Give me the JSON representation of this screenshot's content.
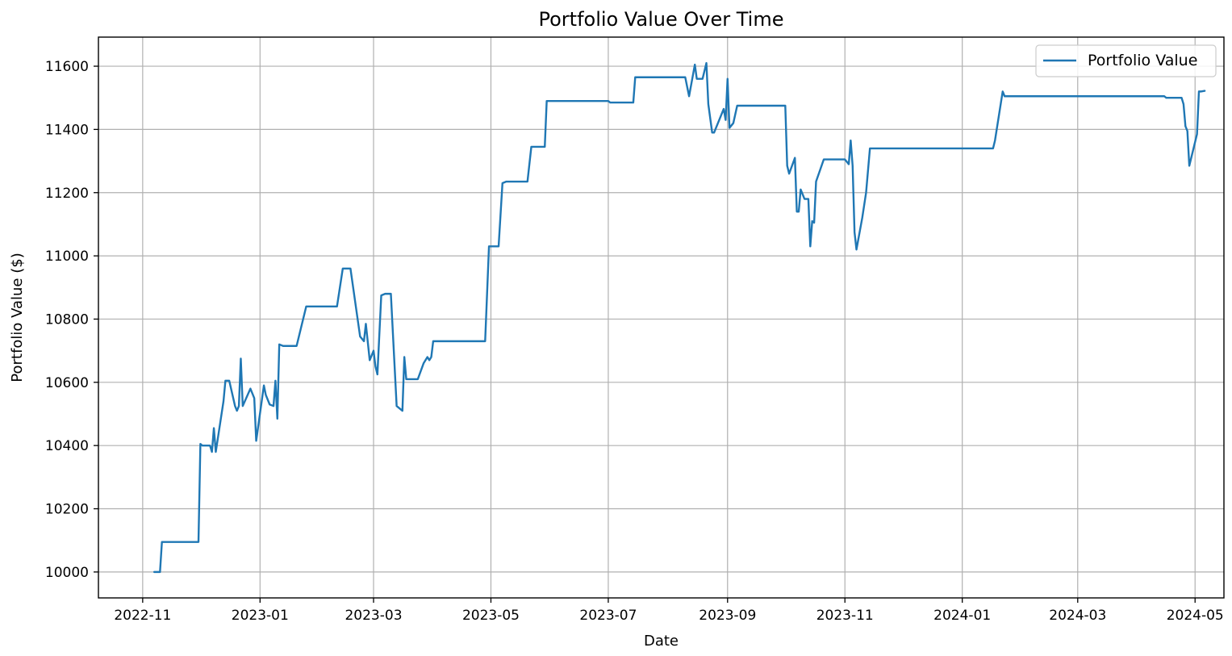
{
  "chart_data": {
    "type": "line",
    "title": "Portfolio Value Over Time",
    "xlabel": "Date",
    "ylabel": "Portfolio Value ($)",
    "x_ticks": [
      "2022-11",
      "2023-01",
      "2023-03",
      "2023-05",
      "2023-07",
      "2023-09",
      "2023-11",
      "2024-01",
      "2024-03",
      "2024-05"
    ],
    "y_ticks": [
      10000,
      10200,
      10400,
      10600,
      10800,
      11000,
      11200,
      11400,
      11600
    ],
    "xlim": [
      "2022-10-09",
      "2024-05-16"
    ],
    "ylim": [
      9918,
      11692
    ],
    "grid": true,
    "legend_position": "top-right",
    "series": [
      {
        "name": "Portfolio Value",
        "color": "#1f77b4",
        "points": [
          [
            "2022-11-07",
            10000
          ],
          [
            "2022-11-10",
            10000
          ],
          [
            "2022-11-11",
            10095
          ],
          [
            "2022-11-30",
            10095
          ],
          [
            "2022-12-01",
            10405
          ],
          [
            "2022-12-02",
            10400
          ],
          [
            "2022-12-06",
            10400
          ],
          [
            "2022-12-07",
            10380
          ],
          [
            "2022-12-08",
            10455
          ],
          [
            "2022-12-09",
            10380
          ],
          [
            "2022-12-13",
            10540
          ],
          [
            "2022-12-14",
            10605
          ],
          [
            "2022-12-16",
            10605
          ],
          [
            "2022-12-19",
            10525
          ],
          [
            "2022-12-20",
            10510
          ],
          [
            "2022-12-21",
            10525
          ],
          [
            "2022-12-22",
            10675
          ],
          [
            "2022-12-23",
            10525
          ],
          [
            "2022-12-27",
            10580
          ],
          [
            "2022-12-29",
            10550
          ],
          [
            "2022-12-30",
            10415
          ],
          [
            "2023-01-03",
            10590
          ],
          [
            "2023-01-04",
            10560
          ],
          [
            "2023-01-06",
            10530
          ],
          [
            "2023-01-08",
            10525
          ],
          [
            "2023-01-09",
            10605
          ],
          [
            "2023-01-10",
            10485
          ],
          [
            "2023-01-11",
            10720
          ],
          [
            "2023-01-13",
            10715
          ],
          [
            "2023-01-20",
            10715
          ],
          [
            "2023-01-25",
            10840
          ],
          [
            "2023-02-10",
            10840
          ],
          [
            "2023-02-13",
            10960
          ],
          [
            "2023-02-17",
            10960
          ],
          [
            "2023-02-22",
            10745
          ],
          [
            "2023-02-24",
            10730
          ],
          [
            "2023-02-25",
            10785
          ],
          [
            "2023-02-27",
            10670
          ],
          [
            "2023-03-01",
            10700
          ],
          [
            "2023-03-02",
            10650
          ],
          [
            "2023-03-03",
            10625
          ],
          [
            "2023-03-05",
            10875
          ],
          [
            "2023-03-07",
            10880
          ],
          [
            "2023-03-10",
            10880
          ],
          [
            "2023-03-13",
            10525
          ],
          [
            "2023-03-16",
            10510
          ],
          [
            "2023-03-17",
            10680
          ],
          [
            "2023-03-18",
            10610
          ],
          [
            "2023-03-24",
            10610
          ],
          [
            "2023-03-27",
            10660
          ],
          [
            "2023-03-29",
            10680
          ],
          [
            "2023-03-30",
            10670
          ],
          [
            "2023-03-31",
            10680
          ],
          [
            "2023-04-01",
            10730
          ],
          [
            "2023-04-28",
            10730
          ],
          [
            "2023-04-30",
            11030
          ],
          [
            "2023-05-05",
            11030
          ],
          [
            "2023-05-07",
            11230
          ],
          [
            "2023-05-09",
            11235
          ],
          [
            "2023-05-20",
            11235
          ],
          [
            "2023-05-22",
            11345
          ],
          [
            "2023-05-29",
            11345
          ],
          [
            "2023-05-30",
            11490
          ],
          [
            "2023-07-01",
            11490
          ],
          [
            "2023-07-02",
            11485
          ],
          [
            "2023-07-14",
            11485
          ],
          [
            "2023-07-15",
            11565
          ],
          [
            "2023-08-10",
            11565
          ],
          [
            "2023-08-12",
            11505
          ],
          [
            "2023-08-15",
            11605
          ],
          [
            "2023-08-16",
            11560
          ],
          [
            "2023-08-19",
            11560
          ],
          [
            "2023-08-21",
            11610
          ],
          [
            "2023-08-22",
            11480
          ],
          [
            "2023-08-24",
            11390
          ],
          [
            "2023-08-25",
            11390
          ],
          [
            "2023-08-30",
            11465
          ],
          [
            "2023-08-31",
            11430
          ],
          [
            "2023-09-01",
            11560
          ],
          [
            "2023-09-02",
            11405
          ],
          [
            "2023-09-04",
            11420
          ],
          [
            "2023-09-06",
            11475
          ],
          [
            "2023-10-01",
            11475
          ],
          [
            "2023-10-02",
            11285
          ],
          [
            "2023-10-03",
            11260
          ],
          [
            "2023-10-06",
            11310
          ],
          [
            "2023-10-07",
            11140
          ],
          [
            "2023-10-08",
            11140
          ],
          [
            "2023-10-09",
            11210
          ],
          [
            "2023-10-11",
            11180
          ],
          [
            "2023-10-13",
            11180
          ],
          [
            "2023-10-14",
            11030
          ],
          [
            "2023-10-15",
            11110
          ],
          [
            "2023-10-16",
            11105
          ],
          [
            "2023-10-17",
            11235
          ],
          [
            "2023-10-21",
            11305
          ],
          [
            "2023-11-01",
            11305
          ],
          [
            "2023-11-03",
            11290
          ],
          [
            "2023-11-04",
            11365
          ],
          [
            "2023-11-05",
            11285
          ],
          [
            "2023-11-06",
            11075
          ],
          [
            "2023-11-07",
            11020
          ],
          [
            "2023-11-10",
            11120
          ],
          [
            "2023-11-12",
            11200
          ],
          [
            "2023-11-14",
            11340
          ],
          [
            "2024-01-17",
            11340
          ],
          [
            "2024-01-18",
            11365
          ],
          [
            "2024-01-22",
            11520
          ],
          [
            "2024-01-23",
            11505
          ],
          [
            "2024-04-15",
            11505
          ],
          [
            "2024-04-16",
            11500
          ],
          [
            "2024-04-24",
            11500
          ],
          [
            "2024-04-25",
            11480
          ],
          [
            "2024-04-26",
            11410
          ],
          [
            "2024-04-27",
            11395
          ],
          [
            "2024-04-28",
            11285
          ],
          [
            "2024-05-02",
            11385
          ],
          [
            "2024-05-03",
            11520
          ],
          [
            "2024-05-04",
            11520
          ],
          [
            "2024-05-06",
            11522
          ]
        ]
      }
    ]
  }
}
